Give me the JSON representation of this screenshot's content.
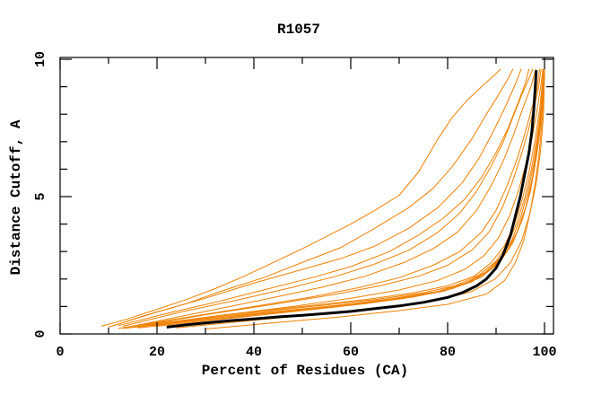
{
  "figure": {
    "background": "#ffffff"
  },
  "chart_data": {
    "type": "line",
    "title": "R1057",
    "xlabel": "Percent of Residues (CA)",
    "ylabel": "Distance Cutoff, A",
    "xlim": [
      0,
      100
    ],
    "ylim": [
      0,
      10
    ],
    "grid": false,
    "legend_position": "none",
    "x_major_ticks": [
      0,
      20,
      40,
      60,
      80,
      100
    ],
    "x_minor_ticks": [
      10,
      30,
      50,
      70,
      90
    ],
    "y_major_ticks": [
      0,
      5,
      10
    ],
    "y_minor_ticks": [
      1,
      2,
      3,
      4,
      6,
      7,
      8,
      9
    ],
    "colors": {
      "prediction": "#f08000",
      "reference": "#000000"
    },
    "line_widths": {
      "prediction": 1,
      "reference": 3
    },
    "series": [
      {
        "role": "prediction",
        "points": [
          [
            8.5,
            0.28
          ],
          [
            14,
            0.55
          ],
          [
            20,
            0.9
          ],
          [
            26,
            1.25
          ],
          [
            32,
            1.65
          ],
          [
            38,
            2.1
          ],
          [
            44,
            2.6
          ],
          [
            50,
            3.1
          ],
          [
            55,
            3.55
          ],
          [
            60,
            4.0
          ],
          [
            65,
            4.5
          ],
          [
            70,
            5.05
          ],
          [
            74,
            5.9
          ],
          [
            78,
            7.1
          ],
          [
            81,
            7.9
          ],
          [
            84,
            8.5
          ],
          [
            87,
            9.0
          ],
          [
            89.5,
            9.4
          ],
          [
            91,
            9.65
          ]
        ]
      },
      {
        "role": "prediction",
        "points": [
          [
            10,
            0.25
          ],
          [
            18,
            0.7
          ],
          [
            26,
            1.1
          ],
          [
            34,
            1.6
          ],
          [
            42,
            2.05
          ],
          [
            50,
            2.6
          ],
          [
            58,
            3.15
          ],
          [
            65,
            3.85
          ],
          [
            72,
            4.6
          ],
          [
            77,
            5.3
          ],
          [
            81,
            6.1
          ],
          [
            85,
            7.1
          ],
          [
            88,
            8.0
          ],
          [
            90.5,
            8.7
          ],
          [
            92.5,
            9.3
          ],
          [
            93.5,
            9.65
          ]
        ]
      },
      {
        "role": "prediction",
        "points": [
          [
            11,
            0.3
          ],
          [
            20,
            0.8
          ],
          [
            30,
            1.3
          ],
          [
            40,
            1.85
          ],
          [
            50,
            2.35
          ],
          [
            58,
            2.75
          ],
          [
            65,
            3.2
          ],
          [
            72,
            3.85
          ],
          [
            78,
            4.6
          ],
          [
            83,
            5.5
          ],
          [
            86.5,
            6.4
          ],
          [
            89.5,
            7.4
          ],
          [
            92,
            8.3
          ],
          [
            94,
            9.1
          ],
          [
            95.2,
            9.65
          ]
        ]
      },
      {
        "role": "prediction",
        "points": [
          [
            12,
            0.3
          ],
          [
            22,
            0.75
          ],
          [
            32,
            1.15
          ],
          [
            42,
            1.6
          ],
          [
            52,
            2.05
          ],
          [
            60,
            2.45
          ],
          [
            68,
            3.0
          ],
          [
            74,
            3.6
          ],
          [
            79,
            4.2
          ],
          [
            83.5,
            4.9
          ],
          [
            87,
            5.7
          ],
          [
            90,
            6.6
          ],
          [
            92.5,
            7.5
          ],
          [
            94.5,
            8.4
          ],
          [
            96,
            9.1
          ],
          [
            96.8,
            9.65
          ]
        ]
      },
      {
        "role": "prediction",
        "points": [
          [
            13,
            0.28
          ],
          [
            25,
            0.8
          ],
          [
            37,
            1.25
          ],
          [
            48,
            1.7
          ],
          [
            57,
            2.1
          ],
          [
            65,
            2.55
          ],
          [
            72,
            3.05
          ],
          [
            78,
            3.7
          ],
          [
            82.5,
            4.4
          ],
          [
            86,
            5.2
          ],
          [
            89,
            6.1
          ],
          [
            91.5,
            7.0
          ],
          [
            93.5,
            7.9
          ],
          [
            95.3,
            8.7
          ],
          [
            96.8,
            9.3
          ],
          [
            97.6,
            9.65
          ]
        ]
      },
      {
        "role": "prediction",
        "points": [
          [
            14,
            0.25
          ],
          [
            28,
            0.75
          ],
          [
            42,
            1.25
          ],
          [
            54,
            1.7
          ],
          [
            63,
            2.1
          ],
          [
            71,
            2.6
          ],
          [
            77,
            3.1
          ],
          [
            82,
            3.7
          ],
          [
            86,
            4.5
          ],
          [
            89,
            5.4
          ],
          [
            91.5,
            6.3
          ],
          [
            93.5,
            7.2
          ],
          [
            95.5,
            8.2
          ],
          [
            97.2,
            9.0
          ],
          [
            98.2,
            9.65
          ]
        ]
      },
      {
        "role": "prediction",
        "points": [
          [
            12,
            0.2
          ],
          [
            26,
            0.6
          ],
          [
            40,
            1.0
          ],
          [
            52,
            1.35
          ],
          [
            62,
            1.7
          ],
          [
            70,
            2.05
          ],
          [
            77,
            2.5
          ],
          [
            82.5,
            3.0
          ],
          [
            87,
            3.7
          ],
          [
            90,
            4.5
          ],
          [
            92.3,
            5.4
          ],
          [
            94.2,
            6.3
          ],
          [
            95.8,
            7.2
          ],
          [
            97.2,
            8.1
          ],
          [
            98.4,
            8.9
          ],
          [
            99,
            9.65
          ]
        ]
      },
      {
        "role": "prediction",
        "points": [
          [
            15,
            0.25
          ],
          [
            30,
            0.7
          ],
          [
            45,
            1.1
          ],
          [
            57,
            1.45
          ],
          [
            66,
            1.75
          ],
          [
            74,
            2.1
          ],
          [
            80,
            2.5
          ],
          [
            85,
            3.05
          ],
          [
            88.5,
            3.7
          ],
          [
            91.3,
            4.6
          ],
          [
            93.3,
            5.5
          ],
          [
            95,
            6.4
          ],
          [
            96.5,
            7.3
          ],
          [
            97.8,
            8.2
          ],
          [
            98.8,
            9.0
          ],
          [
            99.3,
            9.65
          ]
        ]
      },
      {
        "role": "prediction",
        "points": [
          [
            16,
            0.25
          ],
          [
            32,
            0.65
          ],
          [
            48,
            1.0
          ],
          [
            60,
            1.3
          ],
          [
            70,
            1.6
          ],
          [
            78,
            1.95
          ],
          [
            83.5,
            2.35
          ],
          [
            87.5,
            2.85
          ],
          [
            90.5,
            3.5
          ],
          [
            92.8,
            4.3
          ],
          [
            94.6,
            5.2
          ],
          [
            96.2,
            6.2
          ],
          [
            97.5,
            7.2
          ],
          [
            98.5,
            8.2
          ],
          [
            99.2,
            9.0
          ],
          [
            99.7,
            9.65
          ]
        ]
      },
      {
        "role": "prediction",
        "points": [
          [
            17,
            0.3
          ],
          [
            34,
            0.7
          ],
          [
            50,
            1.0
          ],
          [
            63,
            1.25
          ],
          [
            73,
            1.5
          ],
          [
            80,
            1.75
          ],
          [
            85.5,
            2.1
          ],
          [
            89,
            2.6
          ],
          [
            91.7,
            3.2
          ],
          [
            93.8,
            4.0
          ],
          [
            95.4,
            4.9
          ],
          [
            96.8,
            5.9
          ],
          [
            98,
            7.0
          ],
          [
            99,
            8.2
          ],
          [
            99.6,
            9.2
          ],
          [
            99.9,
            9.65
          ]
        ]
      },
      {
        "role": "prediction",
        "points": [
          [
            18,
            0.3
          ],
          [
            36,
            0.7
          ],
          [
            52,
            1.0
          ],
          [
            65,
            1.25
          ],
          [
            75,
            1.5
          ],
          [
            81.5,
            1.75
          ],
          [
            86.5,
            2.15
          ],
          [
            90,
            2.65
          ],
          [
            92.5,
            3.3
          ],
          [
            94.4,
            4.1
          ],
          [
            96,
            5.0
          ],
          [
            97.3,
            6.0
          ],
          [
            98.4,
            7.1
          ],
          [
            99.3,
            8.3
          ],
          [
            99.8,
            9.65
          ]
        ]
      },
      {
        "role": "prediction",
        "points": [
          [
            19,
            0.3
          ],
          [
            38,
            0.7
          ],
          [
            55,
            1.0
          ],
          [
            68,
            1.25
          ],
          [
            77,
            1.5
          ],
          [
            83,
            1.8
          ],
          [
            87.5,
            2.2
          ],
          [
            90.8,
            2.75
          ],
          [
            93.2,
            3.4
          ],
          [
            95.1,
            4.25
          ],
          [
            96.6,
            5.2
          ],
          [
            97.9,
            6.3
          ],
          [
            98.9,
            7.5
          ],
          [
            99.6,
            8.7
          ],
          [
            100,
            9.65
          ]
        ]
      },
      {
        "role": "prediction",
        "points": [
          [
            20,
            0.28
          ],
          [
            40,
            0.7
          ],
          [
            57,
            1.0
          ],
          [
            70,
            1.27
          ],
          [
            79,
            1.55
          ],
          [
            85,
            1.9
          ],
          [
            89.3,
            2.4
          ],
          [
            92.3,
            3.0
          ],
          [
            94.6,
            3.8
          ],
          [
            96.3,
            4.7
          ],
          [
            97.7,
            5.8
          ],
          [
            98.8,
            7.0
          ],
          [
            99.5,
            8.2
          ],
          [
            99.9,
            9.3
          ],
          [
            100,
            9.65
          ]
        ]
      },
      {
        "role": "prediction",
        "points": [
          [
            13,
            0.2
          ],
          [
            28,
            0.5
          ],
          [
            44,
            0.8
          ],
          [
            58,
            1.05
          ],
          [
            69,
            1.3
          ],
          [
            78,
            1.55
          ],
          [
            84.5,
            1.9
          ],
          [
            88.8,
            2.35
          ],
          [
            92,
            2.95
          ],
          [
            94.3,
            3.7
          ],
          [
            96.1,
            4.6
          ],
          [
            97.5,
            5.7
          ],
          [
            98.6,
            6.9
          ],
          [
            99.4,
            8.1
          ],
          [
            99.9,
            9.3
          ],
          [
            100,
            9.65
          ]
        ]
      },
      {
        "role": "prediction",
        "points": [
          [
            16,
            0.22
          ],
          [
            34,
            0.55
          ],
          [
            50,
            0.85
          ],
          [
            63,
            1.1
          ],
          [
            73,
            1.35
          ],
          [
            81,
            1.65
          ],
          [
            86.8,
            2.05
          ],
          [
            90.7,
            2.6
          ],
          [
            93.4,
            3.3
          ],
          [
            95.5,
            4.2
          ],
          [
            97.1,
            5.2
          ],
          [
            98.3,
            6.4
          ],
          [
            99.2,
            7.6
          ],
          [
            99.8,
            8.8
          ],
          [
            100,
            9.65
          ]
        ]
      },
      {
        "role": "prediction",
        "points": [
          [
            24,
            0.22
          ],
          [
            40,
            0.5
          ],
          [
            55,
            0.75
          ],
          [
            68,
            1.0
          ],
          [
            78,
            1.22
          ],
          [
            85,
            1.55
          ],
          [
            89.8,
            2.0
          ],
          [
            93,
            2.6
          ],
          [
            95.3,
            3.4
          ],
          [
            97,
            4.4
          ],
          [
            98.3,
            5.5
          ],
          [
            99.2,
            6.7
          ],
          [
            99.8,
            8.0
          ],
          [
            100,
            9.65
          ]
        ]
      },
      {
        "role": "prediction",
        "points": [
          [
            30,
            0.18
          ],
          [
            45,
            0.42
          ],
          [
            58,
            0.62
          ],
          [
            70,
            0.85
          ],
          [
            80,
            1.08
          ],
          [
            88,
            1.45
          ],
          [
            91.8,
            1.95
          ],
          [
            94,
            2.6
          ],
          [
            95.7,
            3.4
          ],
          [
            97,
            4.4
          ],
          [
            98.1,
            5.5
          ],
          [
            98.9,
            6.6
          ],
          [
            99.5,
            7.8
          ],
          [
            99.9,
            9.0
          ],
          [
            100,
            9.65
          ]
        ]
      },
      {
        "role": "reference",
        "points": [
          [
            22,
            0.25
          ],
          [
            26,
            0.33
          ],
          [
            30,
            0.4
          ],
          [
            35,
            0.48
          ],
          [
            40,
            0.55
          ],
          [
            45,
            0.62
          ],
          [
            50,
            0.68
          ],
          [
            55,
            0.75
          ],
          [
            60,
            0.82
          ],
          [
            65,
            0.92
          ],
          [
            70,
            1.02
          ],
          [
            75,
            1.15
          ],
          [
            80,
            1.33
          ],
          [
            83,
            1.5
          ],
          [
            86,
            1.75
          ],
          [
            88,
            2.0
          ],
          [
            90,
            2.4
          ],
          [
            91.5,
            2.9
          ],
          [
            93,
            3.6
          ],
          [
            94,
            4.3
          ],
          [
            95,
            5.0
          ],
          [
            96,
            5.9
          ],
          [
            96.8,
            6.6
          ],
          [
            97.4,
            7.4
          ],
          [
            97.8,
            8.2
          ],
          [
            98.1,
            9.0
          ],
          [
            98.3,
            9.6
          ]
        ]
      }
    ]
  }
}
